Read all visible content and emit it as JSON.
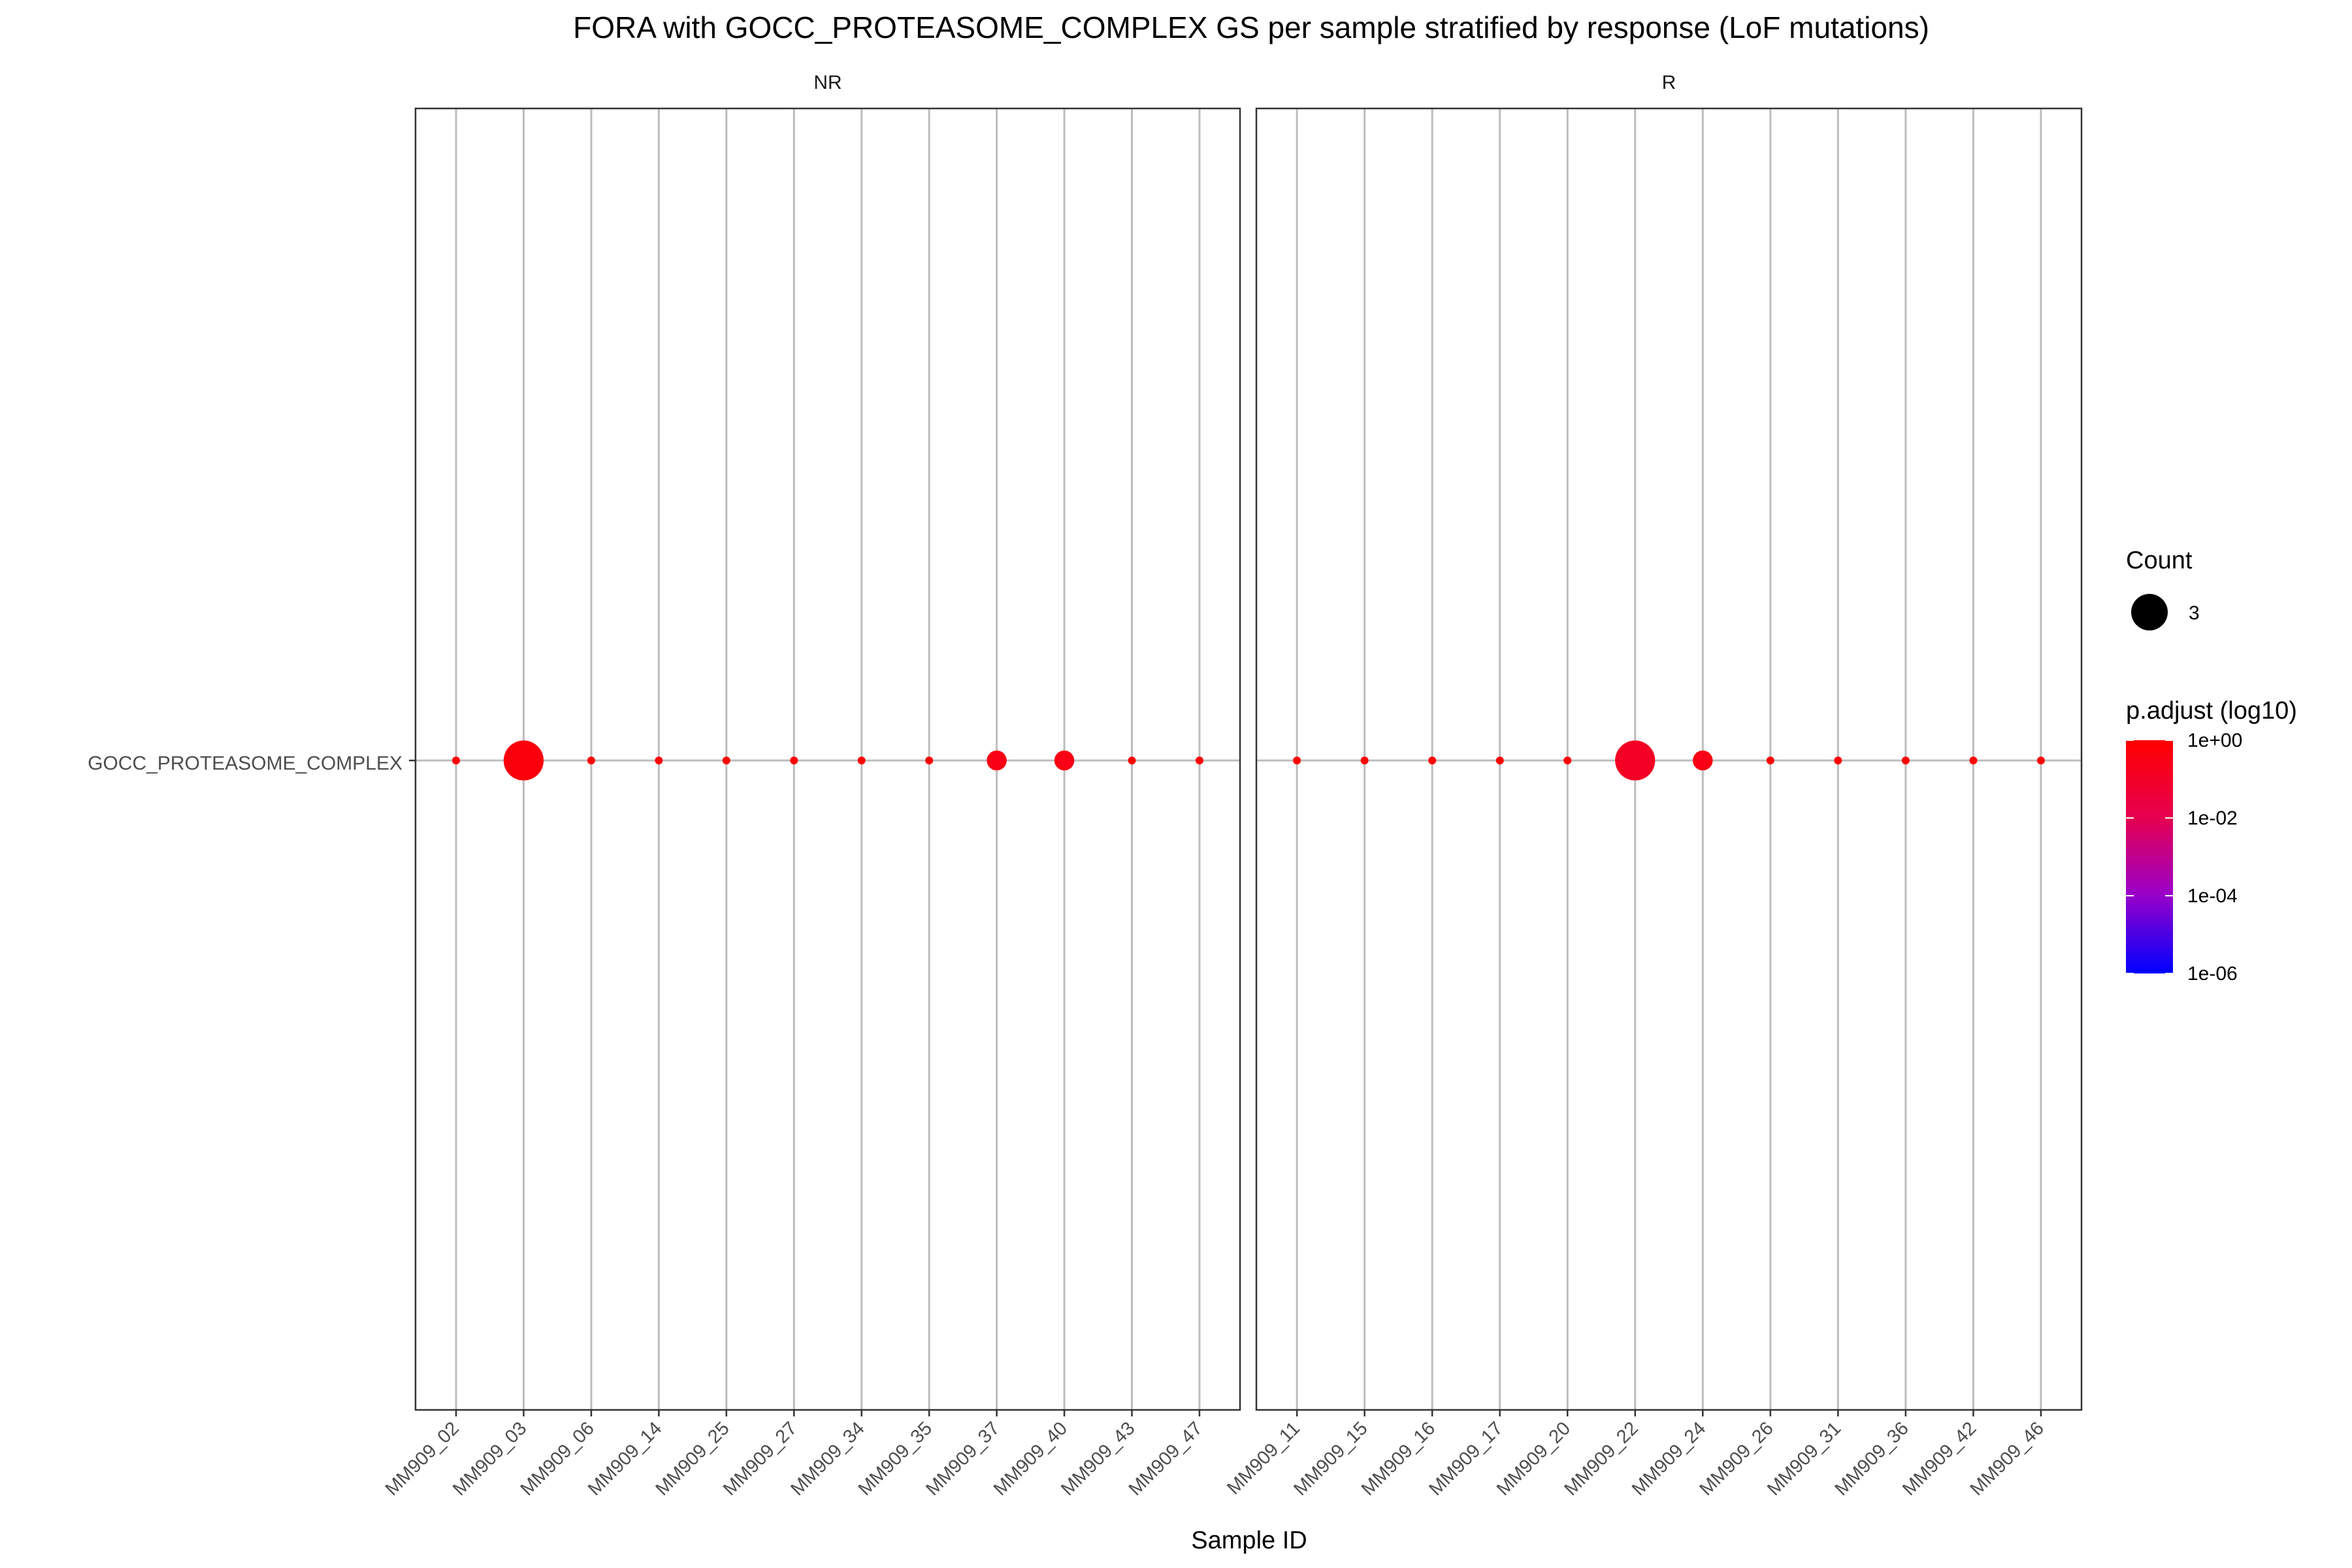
{
  "chart_data": {
    "type": "scatter",
    "title": "FORA with GOCC_PROTEASOME_COMPLEX GS per sample stratified by response (LoF mutations)",
    "xlabel": "Sample ID",
    "ylabel": "",
    "y_categories": [
      "GOCC_PROTEASOME_COMPLEX"
    ],
    "grid": true,
    "legend_position": "right",
    "size_legend": {
      "title": "Count",
      "entries": [
        {
          "label": "3",
          "value": 3
        }
      ]
    },
    "color_legend": {
      "title": "p.adjust (log10)",
      "ticks": [
        "1e+00",
        "1e-02",
        "1e-04",
        "1e-06"
      ],
      "tick_log10": [
        0,
        -2,
        -4,
        -6
      ],
      "low_color": "#0000ff",
      "high_color": "#ff0000"
    },
    "panels": [
      {
        "label": "NR",
        "categories": [
          "MM909_02",
          "MM909_03",
          "MM909_06",
          "MM909_14",
          "MM909_25",
          "MM909_27",
          "MM909_34",
          "MM909_35",
          "MM909_37",
          "MM909_40",
          "MM909_43",
          "MM909_47"
        ],
        "points": [
          {
            "x": "MM909_02",
            "y": "GOCC_PROTEASOME_COMPLEX",
            "count": 1,
            "log10_padj": 0.0
          },
          {
            "x": "MM909_03",
            "y": "GOCC_PROTEASOME_COMPLEX",
            "count": 3,
            "log10_padj": -0.3
          },
          {
            "x": "MM909_06",
            "y": "GOCC_PROTEASOME_COMPLEX",
            "count": 1,
            "log10_padj": 0.0
          },
          {
            "x": "MM909_14",
            "y": "GOCC_PROTEASOME_COMPLEX",
            "count": 1,
            "log10_padj": 0.0
          },
          {
            "x": "MM909_25",
            "y": "GOCC_PROTEASOME_COMPLEX",
            "count": 1,
            "log10_padj": 0.0
          },
          {
            "x": "MM909_27",
            "y": "GOCC_PROTEASOME_COMPLEX",
            "count": 1,
            "log10_padj": 0.0
          },
          {
            "x": "MM909_34",
            "y": "GOCC_PROTEASOME_COMPLEX",
            "count": 1,
            "log10_padj": 0.0
          },
          {
            "x": "MM909_35",
            "y": "GOCC_PROTEASOME_COMPLEX",
            "count": 1,
            "log10_padj": 0.0
          },
          {
            "x": "MM909_37",
            "y": "GOCC_PROTEASOME_COMPLEX",
            "count": 2,
            "log10_padj": -0.5
          },
          {
            "x": "MM909_40",
            "y": "GOCC_PROTEASOME_COMPLEX",
            "count": 2,
            "log10_padj": -0.5
          },
          {
            "x": "MM909_43",
            "y": "GOCC_PROTEASOME_COMPLEX",
            "count": 1,
            "log10_padj": 0.0
          },
          {
            "x": "MM909_47",
            "y": "GOCC_PROTEASOME_COMPLEX",
            "count": 1,
            "log10_padj": 0.0
          }
        ]
      },
      {
        "label": "R",
        "categories": [
          "MM909_11",
          "MM909_15",
          "MM909_16",
          "MM909_17",
          "MM909_20",
          "MM909_22",
          "MM909_24",
          "MM909_26",
          "MM909_31",
          "MM909_36",
          "MM909_42",
          "MM909_46"
        ],
        "points": [
          {
            "x": "MM909_11",
            "y": "GOCC_PROTEASOME_COMPLEX",
            "count": 1,
            "log10_padj": 0.0
          },
          {
            "x": "MM909_15",
            "y": "GOCC_PROTEASOME_COMPLEX",
            "count": 1,
            "log10_padj": 0.0
          },
          {
            "x": "MM909_16",
            "y": "GOCC_PROTEASOME_COMPLEX",
            "count": 1,
            "log10_padj": 0.0
          },
          {
            "x": "MM909_17",
            "y": "GOCC_PROTEASOME_COMPLEX",
            "count": 1,
            "log10_padj": 0.0
          },
          {
            "x": "MM909_20",
            "y": "GOCC_PROTEASOME_COMPLEX",
            "count": 1,
            "log10_padj": 0.0
          },
          {
            "x": "MM909_22",
            "y": "GOCC_PROTEASOME_COMPLEX",
            "count": 3,
            "log10_padj": -0.9
          },
          {
            "x": "MM909_24",
            "y": "GOCC_PROTEASOME_COMPLEX",
            "count": 2,
            "log10_padj": -0.5
          },
          {
            "x": "MM909_26",
            "y": "GOCC_PROTEASOME_COMPLEX",
            "count": 1,
            "log10_padj": 0.0
          },
          {
            "x": "MM909_31",
            "y": "GOCC_PROTEASOME_COMPLEX",
            "count": 1,
            "log10_padj": 0.0
          },
          {
            "x": "MM909_36",
            "y": "GOCC_PROTEASOME_COMPLEX",
            "count": 1,
            "log10_padj": 0.0
          },
          {
            "x": "MM909_42",
            "y": "GOCC_PROTEASOME_COMPLEX",
            "count": 1,
            "log10_padj": 0.0
          },
          {
            "x": "MM909_46",
            "y": "GOCC_PROTEASOME_COMPLEX",
            "count": 1,
            "log10_padj": 0.0
          }
        ]
      }
    ]
  }
}
